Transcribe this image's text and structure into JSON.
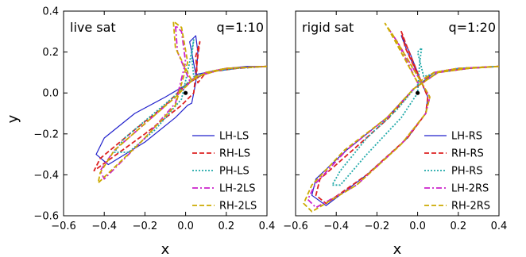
{
  "chart_data": [
    {
      "type": "line",
      "panel_label": "live sat",
      "ratio_label": "q=1:10",
      "xlabel": "x",
      "ylabel": "y",
      "xlim": [
        -0.6,
        0.4
      ],
      "ylim": [
        -0.6,
        0.4
      ],
      "x_ticks": [
        "−0.6",
        "−0.4",
        "−0.2",
        "0.0",
        "0.2",
        "0.4"
      ],
      "y_ticks": [
        "−0.6",
        "−0.4",
        "−0.2",
        "0.0",
        "0.2",
        "0.4"
      ],
      "legend_position": "lower-right",
      "center_point": [
        0.0,
        0.0
      ],
      "series": [
        {
          "name": "LH-LS",
          "color": "#2222cc",
          "dash": "solid",
          "x": [
            0.4,
            0.3,
            0.2,
            0.1,
            0.05,
            0.03,
            0.02,
            0.05,
            0.06,
            0.05,
            0.03,
            0.01,
            -0.05,
            -0.2,
            -0.38,
            -0.44,
            -0.4,
            -0.25,
            -0.1,
            0.02,
            0.1,
            0.25,
            0.4
          ],
          "y": [
            0.13,
            0.13,
            0.12,
            0.1,
            0.09,
            0.2,
            0.25,
            0.28,
            0.2,
            0.05,
            -0.05,
            -0.06,
            -0.12,
            -0.24,
            -0.35,
            -0.3,
            -0.22,
            -0.1,
            -0.02,
            0.05,
            0.1,
            0.12,
            0.13
          ]
        },
        {
          "name": "RH-LS",
          "color": "#dd2222",
          "dash": "dashed",
          "x": [
            0.4,
            0.2,
            0.1,
            0.06,
            0.05,
            0.07,
            0.06,
            0.04,
            -0.02,
            -0.2,
            -0.45,
            -0.42,
            -0.25,
            -0.1,
            0.0,
            0.1,
            0.25,
            0.4
          ],
          "y": [
            0.13,
            0.12,
            0.1,
            0.05,
            0.18,
            0.25,
            0.18,
            0.0,
            -0.06,
            -0.2,
            -0.38,
            -0.32,
            -0.18,
            -0.06,
            0.04,
            0.1,
            0.12,
            0.13
          ]
        },
        {
          "name": "PH-LS",
          "color": "#22aaaa",
          "dash": "dotted",
          "x": [
            0.4,
            0.2,
            0.1,
            0.04,
            0.03,
            0.04,
            0.02,
            -0.02,
            -0.15,
            -0.28,
            -0.35,
            -0.3,
            -0.18,
            -0.06,
            0.02,
            0.1,
            0.25,
            0.4
          ],
          "y": [
            0.13,
            0.12,
            0.1,
            0.08,
            0.18,
            0.26,
            0.15,
            -0.03,
            -0.18,
            -0.29,
            -0.29,
            -0.22,
            -0.12,
            -0.02,
            0.06,
            0.1,
            0.12,
            0.13
          ]
        },
        {
          "name": "LH-2LS",
          "color": "#cc22cc",
          "dash": "dashdot",
          "x": [
            0.4,
            0.2,
            0.1,
            0.02,
            -0.04,
            -0.05,
            -0.02,
            0.0,
            -0.05,
            -0.2,
            -0.4,
            -0.42,
            -0.35,
            -0.2,
            -0.05,
            0.05,
            0.2,
            0.4
          ],
          "y": [
            0.13,
            0.12,
            0.1,
            0.06,
            0.2,
            0.33,
            0.3,
            0.15,
            -0.05,
            -0.22,
            -0.42,
            -0.38,
            -0.28,
            -0.15,
            -0.02,
            0.08,
            0.12,
            0.13
          ]
        },
        {
          "name": "RH-2LS",
          "color": "#ccaa00",
          "dash": "dashed",
          "x": [
            0.4,
            0.2,
            0.1,
            0.03,
            -0.05,
            -0.06,
            -0.02,
            0.01,
            -0.05,
            -0.22,
            -0.43,
            -0.42,
            -0.35,
            -0.2,
            -0.05,
            0.05,
            0.2,
            0.4
          ],
          "y": [
            0.13,
            0.12,
            0.1,
            0.06,
            0.22,
            0.35,
            0.32,
            0.15,
            -0.06,
            -0.24,
            -0.44,
            -0.39,
            -0.28,
            -0.15,
            -0.02,
            0.08,
            0.12,
            0.13
          ]
        }
      ],
      "legend": [
        {
          "name": "LH-LS",
          "color": "#2222cc",
          "dash": "solid"
        },
        {
          "name": "RH-LS",
          "color": "#dd2222",
          "dash": "dashed"
        },
        {
          "name": "PH-LS",
          "color": "#22aaaa",
          "dash": "dotted"
        },
        {
          "name": "LH-2LS",
          "color": "#cc22cc",
          "dash": "dashdot"
        },
        {
          "name": "RH-2LS",
          "color": "#ccaa00",
          "dash": "dashed"
        }
      ]
    },
    {
      "type": "line",
      "panel_label": "rigid sat",
      "ratio_label": "q=1:20",
      "xlabel": "x",
      "ylabel": "",
      "xlim": [
        -0.6,
        0.4
      ],
      "ylim": [
        -0.6,
        0.4
      ],
      "x_ticks": [
        "−0.6",
        "−0.4",
        "−0.2",
        "0.0",
        "0.2",
        "0.4"
      ],
      "y_ticks": [],
      "legend_position": "lower-right",
      "center_point": [
        0.0,
        0.0
      ],
      "series": [
        {
          "name": "LH-RS",
          "color": "#2222cc",
          "dash": "solid",
          "x": [
            0.4,
            0.2,
            0.08,
            0.02,
            -0.05,
            -0.08,
            -0.04,
            0.02,
            0.05,
            0.04,
            -0.05,
            -0.25,
            -0.45,
            -0.52,
            -0.5,
            -0.35,
            -0.15,
            -0.02,
            0.1,
            0.25,
            0.4
          ],
          "y": [
            0.13,
            0.12,
            0.1,
            0.05,
            0.2,
            0.28,
            0.2,
            0.05,
            -0.02,
            -0.1,
            -0.22,
            -0.4,
            -0.55,
            -0.5,
            -0.42,
            -0.28,
            -0.12,
            0.02,
            0.1,
            0.12,
            0.13
          ]
        },
        {
          "name": "RH-RS",
          "color": "#dd2222",
          "dash": "dashed",
          "x": [
            0.4,
            0.2,
            0.08,
            0.02,
            -0.06,
            -0.08,
            -0.05,
            0.02,
            0.05,
            0.04,
            -0.05,
            -0.25,
            -0.45,
            -0.5,
            -0.48,
            -0.32,
            -0.14,
            -0.02,
            0.1,
            0.25,
            0.4
          ],
          "y": [
            0.13,
            0.12,
            0.1,
            0.05,
            0.22,
            0.3,
            0.22,
            0.05,
            -0.02,
            -0.1,
            -0.22,
            -0.4,
            -0.54,
            -0.5,
            -0.42,
            -0.28,
            -0.12,
            0.02,
            0.1,
            0.12,
            0.13
          ]
        },
        {
          "name": "PH-RS",
          "color": "#22aaaa",
          "dash": "dotted",
          "x": [
            0.4,
            0.2,
            0.1,
            0.03,
            0.0,
            0.02,
            0.01,
            0.0,
            -0.08,
            -0.25,
            -0.38,
            -0.42,
            -0.38,
            -0.25,
            -0.1,
            0.0,
            0.1,
            0.25,
            0.4
          ],
          "y": [
            0.13,
            0.12,
            0.1,
            0.08,
            0.2,
            0.22,
            0.15,
            0.0,
            -0.12,
            -0.3,
            -0.45,
            -0.45,
            -0.38,
            -0.22,
            -0.08,
            0.04,
            0.1,
            0.12,
            0.13
          ]
        },
        {
          "name": "LH-2RS",
          "color": "#cc22cc",
          "dash": "dashdot",
          "x": [
            0.4,
            0.2,
            0.08,
            0.0,
            -0.1,
            -0.14,
            -0.1,
            0.02,
            0.06,
            0.04,
            -0.08,
            -0.3,
            -0.5,
            -0.54,
            -0.5,
            -0.35,
            -0.15,
            -0.02,
            0.1,
            0.25,
            0.4
          ],
          "y": [
            0.13,
            0.12,
            0.1,
            0.05,
            0.25,
            0.31,
            0.25,
            0.05,
            -0.02,
            -0.1,
            -0.25,
            -0.45,
            -0.56,
            -0.52,
            -0.44,
            -0.28,
            -0.12,
            0.02,
            0.1,
            0.12,
            0.13
          ]
        },
        {
          "name": "RH-2RS",
          "color": "#ccaa00",
          "dash": "dashed",
          "x": [
            0.4,
            0.2,
            0.08,
            0.0,
            -0.12,
            -0.16,
            -0.12,
            0.02,
            0.06,
            0.04,
            -0.08,
            -0.3,
            -0.52,
            -0.56,
            -0.52,
            -0.36,
            -0.15,
            -0.02,
            0.1,
            0.25,
            0.4
          ],
          "y": [
            0.13,
            0.12,
            0.1,
            0.05,
            0.27,
            0.34,
            0.28,
            0.05,
            -0.02,
            -0.1,
            -0.25,
            -0.45,
            -0.58,
            -0.54,
            -0.45,
            -0.28,
            -0.12,
            0.02,
            0.1,
            0.12,
            0.13
          ]
        }
      ],
      "legend": [
        {
          "name": "LH-RS",
          "color": "#2222cc",
          "dash": "solid"
        },
        {
          "name": "RH-RS",
          "color": "#dd2222",
          "dash": "dashed"
        },
        {
          "name": "PH-RS",
          "color": "#22aaaa",
          "dash": "dotted"
        },
        {
          "name": "LH-2RS",
          "color": "#cc22cc",
          "dash": "dashdot"
        },
        {
          "name": "RH-2RS",
          "color": "#ccaa00",
          "dash": "dashed"
        }
      ]
    }
  ]
}
